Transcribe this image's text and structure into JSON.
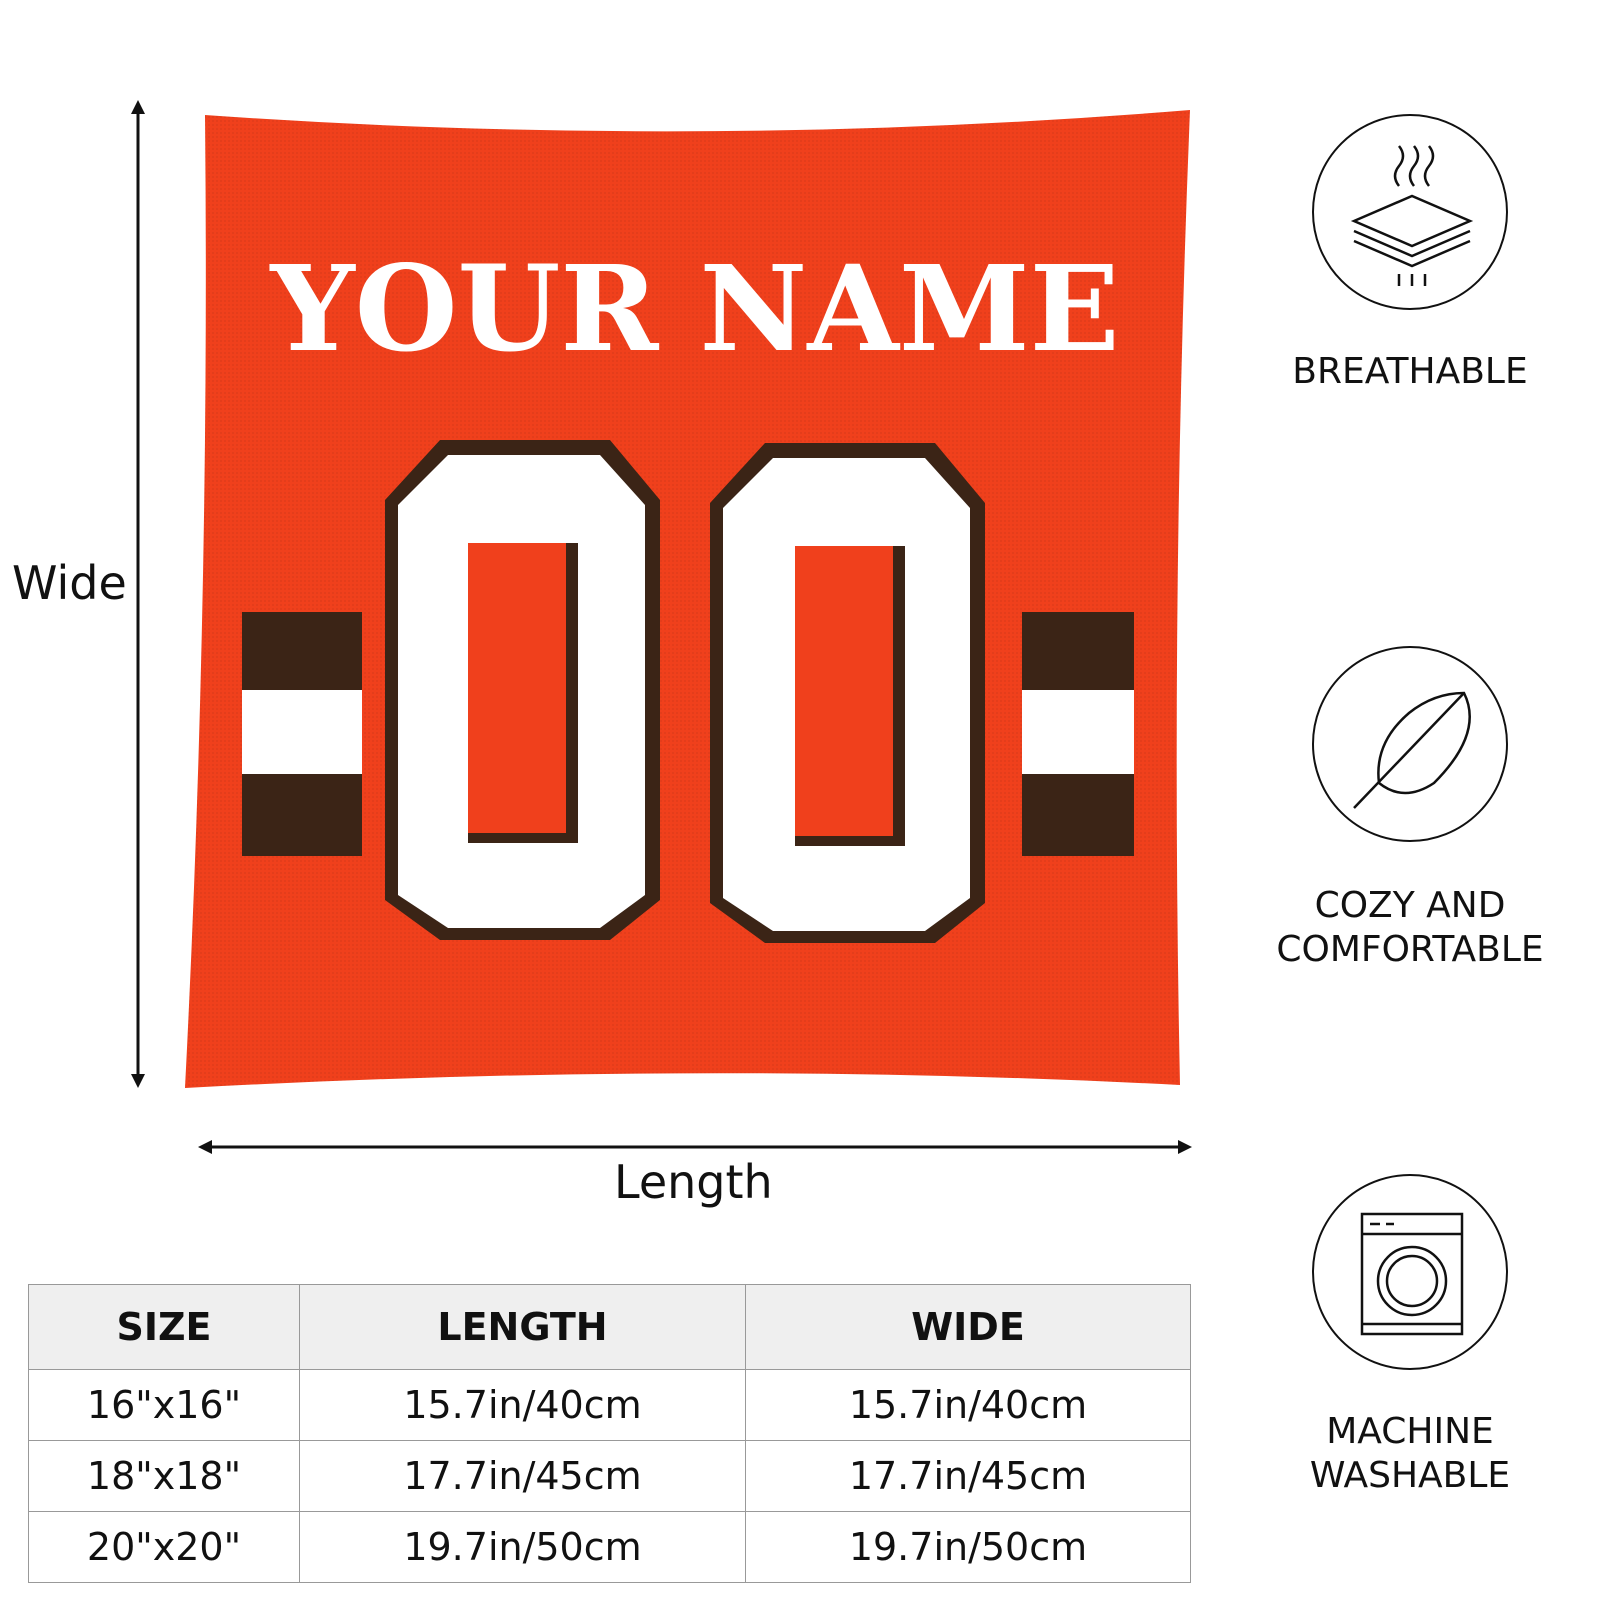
{
  "product": {
    "name_text": "YOUR NAME",
    "number_text": "00",
    "colors": {
      "primary": "#f0401c",
      "stripe_dark": "#3b2416",
      "stripe_light": "#ffffff",
      "text": "#ffffff"
    }
  },
  "dimensions": {
    "vertical_label": "Wide",
    "horizontal_label": "Length"
  },
  "features": [
    {
      "icon": "breathable-layers-icon",
      "label": "BREATHABLE"
    },
    {
      "icon": "feather-icon",
      "label_line1": "COZY AND",
      "label_line2": "COMFORTABLE"
    },
    {
      "icon": "washing-machine-icon",
      "label_line1": "MACHINE",
      "label_line2": "WASHABLE"
    }
  ],
  "size_table": {
    "headers": [
      "SIZE",
      "LENGTH",
      "WIDE"
    ],
    "rows": [
      [
        "16\"x16\"",
        "15.7in/40cm",
        "15.7in/40cm"
      ],
      [
        "18\"x18\"",
        "17.7in/45cm",
        "17.7in/45cm"
      ],
      [
        "20\"x20\"",
        "19.7in/50cm",
        "19.7in/50cm"
      ]
    ]
  }
}
